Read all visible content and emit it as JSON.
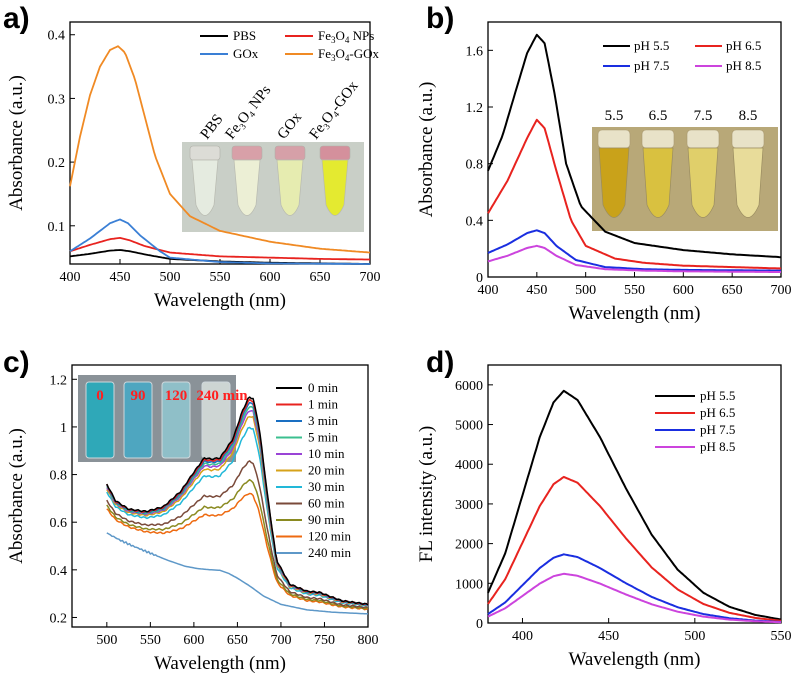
{
  "chart_data": [
    {
      "panel": "a)",
      "type": "line",
      "xlabel": "Wavelength (nm)",
      "ylabel": "Absorbance (a.u.)",
      "xlim": [
        400,
        700
      ],
      "ylim": [
        0.04,
        0.42
      ],
      "xticks": [
        400,
        450,
        500,
        550,
        600,
        650,
        700
      ],
      "yticks": [
        0.1,
        0.2,
        0.3,
        0.4
      ],
      "legend_position": "top-right",
      "inset_labels": [
        "PBS",
        "Fe3O4 NPs",
        "GOx",
        "Fe3O4-GOx"
      ],
      "series": [
        {
          "name": "PBS",
          "legend_text": "PBS",
          "color": "#000000",
          "points": [
            [
              400,
              0.052
            ],
            [
              420,
              0.056
            ],
            [
              440,
              0.061
            ],
            [
              450,
              0.062
            ],
            [
              460,
              0.06
            ],
            [
              475,
              0.055
            ],
            [
              500,
              0.048
            ],
            [
              550,
              0.044
            ],
            [
              600,
              0.042
            ],
            [
              650,
              0.041
            ],
            [
              700,
              0.04
            ]
          ]
        },
        {
          "name": "Fe3O4 NPs",
          "legend_text": "Fe3O4 NPs",
          "color": "#e8231f",
          "points": [
            [
              400,
              0.06
            ],
            [
              420,
              0.07
            ],
            [
              440,
              0.079
            ],
            [
              450,
              0.081
            ],
            [
              460,
              0.077
            ],
            [
              475,
              0.068
            ],
            [
              500,
              0.058
            ],
            [
              550,
              0.052
            ],
            [
              600,
              0.05
            ],
            [
              650,
              0.048
            ],
            [
              700,
              0.047
            ]
          ]
        },
        {
          "name": "GOx",
          "legend_text": "GOx",
          "color": "#3a7fd5",
          "points": [
            [
              400,
              0.06
            ],
            [
              420,
              0.08
            ],
            [
              440,
              0.104
            ],
            [
              450,
              0.11
            ],
            [
              458,
              0.104
            ],
            [
              470,
              0.085
            ],
            [
              490,
              0.06
            ],
            [
              500,
              0.05
            ],
            [
              550,
              0.043
            ],
            [
              600,
              0.041
            ],
            [
              700,
              0.04
            ]
          ]
        },
        {
          "name": "Fe3O4-GOx",
          "legend_text": "Fe3O4-GOx",
          "color": "#f08a24",
          "points": [
            [
              400,
              0.162
            ],
            [
              410,
              0.24
            ],
            [
              420,
              0.305
            ],
            [
              430,
              0.35
            ],
            [
              440,
              0.376
            ],
            [
              448,
              0.382
            ],
            [
              455,
              0.372
            ],
            [
              465,
              0.33
            ],
            [
              475,
              0.27
            ],
            [
              485,
              0.21
            ],
            [
              500,
              0.15
            ],
            [
              520,
              0.115
            ],
            [
              550,
              0.092
            ],
            [
              600,
              0.075
            ],
            [
              650,
              0.064
            ],
            [
              700,
              0.058
            ]
          ]
        }
      ]
    },
    {
      "panel": "b)",
      "type": "line",
      "xlabel": "Wavelength (nm)",
      "ylabel": "Absorbance (a.u.)",
      "xlim": [
        400,
        700
      ],
      "ylim": [
        0,
        1.8
      ],
      "xticks": [
        400,
        450,
        500,
        550,
        600,
        650,
        700
      ],
      "yticks": [
        0.0,
        0.4,
        0.8,
        1.2,
        1.6
      ],
      "legend_position": "top-right",
      "inset_labels": [
        "5.5",
        "6.5",
        "7.5",
        "8.5"
      ],
      "series": [
        {
          "name": "pH 5.5",
          "color": "#000000",
          "points": [
            [
              400,
              0.75
            ],
            [
              415,
              1.0
            ],
            [
              430,
              1.35
            ],
            [
              440,
              1.58
            ],
            [
              450,
              1.71
            ],
            [
              458,
              1.65
            ],
            [
              468,
              1.3
            ],
            [
              480,
              0.8
            ],
            [
              495,
              0.5
            ],
            [
              520,
              0.32
            ],
            [
              550,
              0.24
            ],
            [
              600,
              0.19
            ],
            [
              650,
              0.16
            ],
            [
              700,
              0.14
            ]
          ]
        },
        {
          "name": "pH 6.5",
          "color": "#e8231f",
          "points": [
            [
              400,
              0.45
            ],
            [
              420,
              0.68
            ],
            [
              440,
              0.98
            ],
            [
              450,
              1.11
            ],
            [
              458,
              1.05
            ],
            [
              470,
              0.75
            ],
            [
              485,
              0.4
            ],
            [
              500,
              0.22
            ],
            [
              530,
              0.13
            ],
            [
              560,
              0.1
            ],
            [
              600,
              0.08
            ],
            [
              650,
              0.07
            ],
            [
              700,
              0.06
            ]
          ]
        },
        {
          "name": "pH 7.5",
          "color": "#1a2ee0",
          "points": [
            [
              400,
              0.17
            ],
            [
              420,
              0.23
            ],
            [
              440,
              0.31
            ],
            [
              450,
              0.33
            ],
            [
              458,
              0.31
            ],
            [
              470,
              0.22
            ],
            [
              490,
              0.12
            ],
            [
              520,
              0.07
            ],
            [
              560,
              0.055
            ],
            [
              600,
              0.05
            ],
            [
              700,
              0.045
            ]
          ]
        },
        {
          "name": "pH 8.5",
          "color": "#cc44dd",
          "points": [
            [
              400,
              0.11
            ],
            [
              420,
              0.15
            ],
            [
              440,
              0.205
            ],
            [
              450,
              0.22
            ],
            [
              458,
              0.205
            ],
            [
              470,
              0.15
            ],
            [
              490,
              0.085
            ],
            [
              520,
              0.055
            ],
            [
              560,
              0.045
            ],
            [
              600,
              0.04
            ],
            [
              700,
              0.035
            ]
          ]
        }
      ]
    },
    {
      "panel": "c)",
      "type": "line",
      "xlabel": "Wavelength (nm)",
      "ylabel": "Absorbance (a.u.)",
      "xlim": [
        460,
        800
      ],
      "ylim": [
        0.16,
        1.26
      ],
      "xticks": [
        500,
        550,
        600,
        650,
        700,
        750,
        800
      ],
      "yticks": [
        0.2,
        0.4,
        0.6,
        0.8,
        1.0,
        1.2
      ],
      "legend_position": "top-right",
      "inset_labels": [
        "0",
        "90",
        "120",
        "240 min"
      ],
      "series": [
        {
          "name": "0 min",
          "color": "#000000",
          "f": 1.0
        },
        {
          "name": "1 min",
          "color": "#e8231f",
          "f": 0.985
        },
        {
          "name": "3 min",
          "color": "#1a6fc2",
          "f": 0.97
        },
        {
          "name": "5 min",
          "color": "#3bbf8f",
          "f": 0.95
        },
        {
          "name": "10 min",
          "color": "#9a44d6",
          "f": 0.93
        },
        {
          "name": "20 min",
          "color": "#d6a21a",
          "f": 0.9
        },
        {
          "name": "30 min",
          "color": "#22b8d8",
          "f": 0.84
        },
        {
          "name": "60 min",
          "color": "#7a4a3a",
          "f": 0.66
        },
        {
          "name": "90 min",
          "color": "#8a8a20",
          "f": 0.56
        },
        {
          "name": "120 min",
          "color": "#ee6a10",
          "f": 0.49
        },
        {
          "name": "240 min",
          "color": "#5e98c8",
          "f": 0.0
        }
      ],
      "base_curve": [
        [
          500,
          0.76
        ],
        [
          510,
          0.69
        ],
        [
          525,
          0.655
        ],
        [
          545,
          0.645
        ],
        [
          565,
          0.665
        ],
        [
          585,
          0.73
        ],
        [
          600,
          0.81
        ],
        [
          612,
          0.87
        ],
        [
          620,
          0.865
        ],
        [
          630,
          0.87
        ],
        [
          645,
          0.95
        ],
        [
          655,
          1.06
        ],
        [
          663,
          1.125
        ],
        [
          668,
          1.12
        ],
        [
          675,
          1.0
        ],
        [
          685,
          0.7
        ],
        [
          695,
          0.44
        ],
        [
          710,
          0.34
        ],
        [
          730,
          0.31
        ],
        [
          745,
          0.305
        ],
        [
          755,
          0.29
        ],
        [
          770,
          0.27
        ],
        [
          800,
          0.255
        ]
      ],
      "final_curve": [
        [
          500,
          0.555
        ],
        [
          515,
          0.525
        ],
        [
          530,
          0.5
        ],
        [
          550,
          0.47
        ],
        [
          570,
          0.44
        ],
        [
          590,
          0.415
        ],
        [
          605,
          0.405
        ],
        [
          620,
          0.4
        ],
        [
          630,
          0.398
        ],
        [
          640,
          0.385
        ],
        [
          650,
          0.365
        ],
        [
          665,
          0.33
        ],
        [
          680,
          0.29
        ],
        [
          700,
          0.255
        ],
        [
          730,
          0.232
        ],
        [
          760,
          0.222
        ],
        [
          800,
          0.215
        ]
      ]
    },
    {
      "panel": "d)",
      "type": "line",
      "xlabel": "Wavelength (nm)",
      "ylabel": "FL intensity (a.u.)",
      "xlim": [
        380,
        550
      ],
      "ylim": [
        0,
        6500
      ],
      "xticks": [
        400,
        450,
        500,
        550
      ],
      "yticks": [
        0,
        1000,
        2000,
        3000,
        4000,
        5000,
        6000
      ],
      "legend_position": "top-right",
      "series": [
        {
          "name": "pH 5.5",
          "color": "#000000",
          "peak": 5850
        },
        {
          "name": "pH 6.5",
          "color": "#e8231f",
          "peak": 3680
        },
        {
          "name": "pH 7.5",
          "color": "#1a2ee0",
          "peak": 1730
        },
        {
          "name": "pH 8.5",
          "color": "#cc44dd",
          "peak": 1240
        }
      ],
      "peak_wavelength": 424,
      "curve_shape": [
        [
          380,
          0.13
        ],
        [
          390,
          0.3
        ],
        [
          400,
          0.55
        ],
        [
          410,
          0.8
        ],
        [
          418,
          0.95
        ],
        [
          424,
          1.0
        ],
        [
          432,
          0.96
        ],
        [
          445,
          0.8
        ],
        [
          460,
          0.58
        ],
        [
          475,
          0.38
        ],
        [
          490,
          0.23
        ],
        [
          505,
          0.13
        ],
        [
          520,
          0.07
        ],
        [
          535,
          0.035
        ],
        [
          550,
          0.015
        ]
      ]
    }
  ]
}
